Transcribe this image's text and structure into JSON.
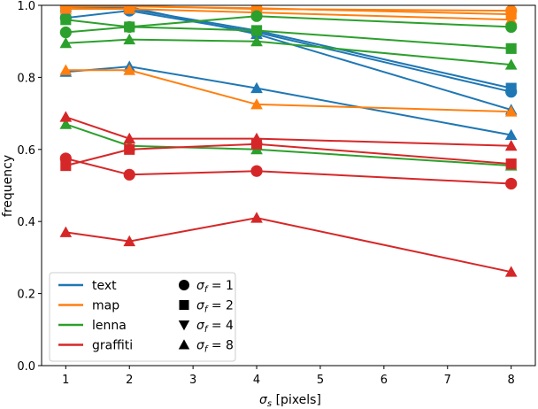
{
  "chart_data": {
    "type": "line",
    "title": "",
    "xlabel_symbol": "σ",
    "xlabel_sub": "s",
    "xlabel_rest": " [pixels]",
    "ylabel": "frequency",
    "xlim": [
      0.62,
      8.38
    ],
    "ylim": [
      0.0,
      1.0
    ],
    "x": [
      1,
      2,
      4,
      8
    ],
    "xticks": [
      1,
      2,
      3,
      4,
      5,
      6,
      7,
      8
    ],
    "yticks": [
      0.0,
      0.2,
      0.4,
      0.6,
      0.8,
      1.0
    ],
    "grid": false,
    "legend_placement": "bottom-left",
    "datasets": [
      {
        "name": "text",
        "color": "#1f77b4"
      },
      {
        "name": "map",
        "color": "#ff7f0e"
      },
      {
        "name": "lenna",
        "color": "#2ca02c"
      },
      {
        "name": "graffiti",
        "color": "#d62728"
      }
    ],
    "sigma_f": [
      {
        "label_symbol": "σ",
        "label_sub": "f",
        "label_value": " = 1",
        "marker": "circle"
      },
      {
        "label_symbol": "σ",
        "label_sub": "f",
        "label_value": " = 2",
        "marker": "square"
      },
      {
        "label_symbol": "σ",
        "label_sub": "f",
        "label_value": " = 4",
        "marker": "triangle-down"
      },
      {
        "label_symbol": "σ",
        "label_sub": "f",
        "label_value": " = 8",
        "marker": "triangle-up"
      }
    ],
    "series": [
      {
        "dataset": "text",
        "sigma_f": 1,
        "values": [
          0.965,
          0.985,
          0.925,
          0.76
        ]
      },
      {
        "dataset": "text",
        "sigma_f": 2,
        "values": [
          0.995,
          0.99,
          0.93,
          0.77
        ]
      },
      {
        "dataset": "text",
        "sigma_f": 4,
        "values": [
          0.997,
          0.995,
          0.92,
          0.71
        ]
      },
      {
        "dataset": "text",
        "sigma_f": 8,
        "values": [
          0.815,
          0.83,
          0.77,
          0.64
        ]
      },
      {
        "dataset": "map",
        "sigma_f": 1,
        "values": [
          0.995,
          0.998,
          0.99,
          0.985
        ]
      },
      {
        "dataset": "map",
        "sigma_f": 2,
        "values": [
          0.998,
          0.997,
          0.992,
          0.975
        ]
      },
      {
        "dataset": "map",
        "sigma_f": 4,
        "values": [
          0.99,
          0.99,
          0.98,
          0.96
        ]
      },
      {
        "dataset": "map",
        "sigma_f": 8,
        "values": [
          0.82,
          0.82,
          0.725,
          0.705
        ]
      },
      {
        "dataset": "lenna",
        "sigma_f": 1,
        "values": [
          0.925,
          0.94,
          0.97,
          0.94
        ]
      },
      {
        "dataset": "lenna",
        "sigma_f": 2,
        "values": [
          0.96,
          0.94,
          0.93,
          0.88
        ]
      },
      {
        "dataset": "lenna",
        "sigma_f": 4,
        "values": [
          0.895,
          0.905,
          0.9,
          0.835
        ]
      },
      {
        "dataset": "lenna",
        "sigma_f": 8,
        "values": [
          0.67,
          0.61,
          0.6,
          0.555
        ]
      },
      {
        "dataset": "graffiti",
        "sigma_f": 1,
        "values": [
          0.575,
          0.53,
          0.54,
          0.505
        ]
      },
      {
        "dataset": "graffiti",
        "sigma_f": 2,
        "values": [
          0.555,
          0.6,
          0.615,
          0.56
        ]
      },
      {
        "dataset": "graffiti",
        "sigma_f": 4,
        "values": [
          0.69,
          0.63,
          0.63,
          0.61
        ]
      },
      {
        "dataset": "graffiti",
        "sigma_f": 8,
        "values": [
          0.37,
          0.345,
          0.41,
          0.26
        ]
      }
    ]
  }
}
